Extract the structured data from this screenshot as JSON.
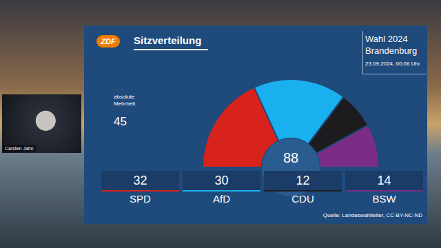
{
  "chart_data": {
    "type": "pie",
    "title": "Sitzverteilung",
    "logo": "ZDF",
    "header": [
      "Wahl 2024",
      "Brandenburg"
    ],
    "timestamp": "23.09.2024, 00:06 Uhr",
    "source": "Quelle: Landeswahlleiter, CC-BY-NC-ND",
    "categories": [
      "SPD",
      "AfD",
      "CDU",
      "BSW"
    ],
    "values": [
      32,
      30,
      12,
      14
    ],
    "colors": [
      "#d8231c",
      "#1ab0ef",
      "#1c1c1e",
      "#7b2d86"
    ],
    "total": 88,
    "majority": {
      "label": "absolute Mehrheit",
      "value": 45
    },
    "data_labels": true
  },
  "overlay": {
    "name": "Carsten Jahn"
  }
}
